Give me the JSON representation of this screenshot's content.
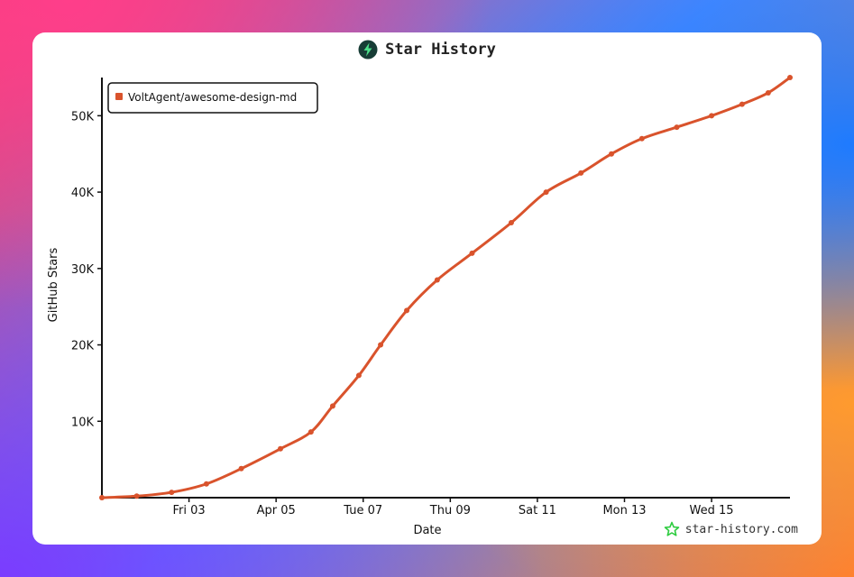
{
  "header": {
    "title": "Star History"
  },
  "watermark": {
    "text": "star-history.com"
  },
  "colors": {
    "series": "#d9532c",
    "axis": "#111111",
    "logo_bg": "#173d36",
    "logo_bolt": "#4be089",
    "watermark_star": "#2ecc40"
  },
  "icons": {
    "title": "lightning-bolt-icon",
    "watermark": "star-icon"
  },
  "chart_data": {
    "type": "line",
    "title": "Star History",
    "xlabel": "Date",
    "ylabel": "GitHub Stars",
    "x_ticks": [
      "Fri 03",
      "Apr 05",
      "Tue 07",
      "Thu 09",
      "Sat 11",
      "Mon 13",
      "Wed 15"
    ],
    "y_ticks": [
      "10K",
      "20K",
      "30K",
      "40K",
      "50K"
    ],
    "y_tick_values": [
      10000,
      20000,
      30000,
      40000,
      50000
    ],
    "xlim_days": [
      1.0,
      16.8
    ],
    "ylim": [
      0,
      55000
    ],
    "legend_position": "top-left",
    "grid": false,
    "series": [
      {
        "name": "VoltAgent/awesome-design-md",
        "x_days": [
          1.0,
          1.8,
          2.6,
          3.4,
          4.2,
          5.1,
          5.8,
          6.3,
          6.9,
          7.4,
          8.0,
          8.7,
          9.5,
          10.4,
          11.2,
          12.0,
          12.7,
          13.4,
          14.2,
          15.0,
          15.7,
          16.3,
          16.8
        ],
        "values": [
          0,
          200,
          700,
          1800,
          3800,
          6400,
          8600,
          12000,
          16000,
          20000,
          24500,
          28500,
          32000,
          36000,
          40000,
          42500,
          45000,
          47000,
          48500,
          50000,
          51500,
          53000,
          55000
        ]
      }
    ]
  }
}
